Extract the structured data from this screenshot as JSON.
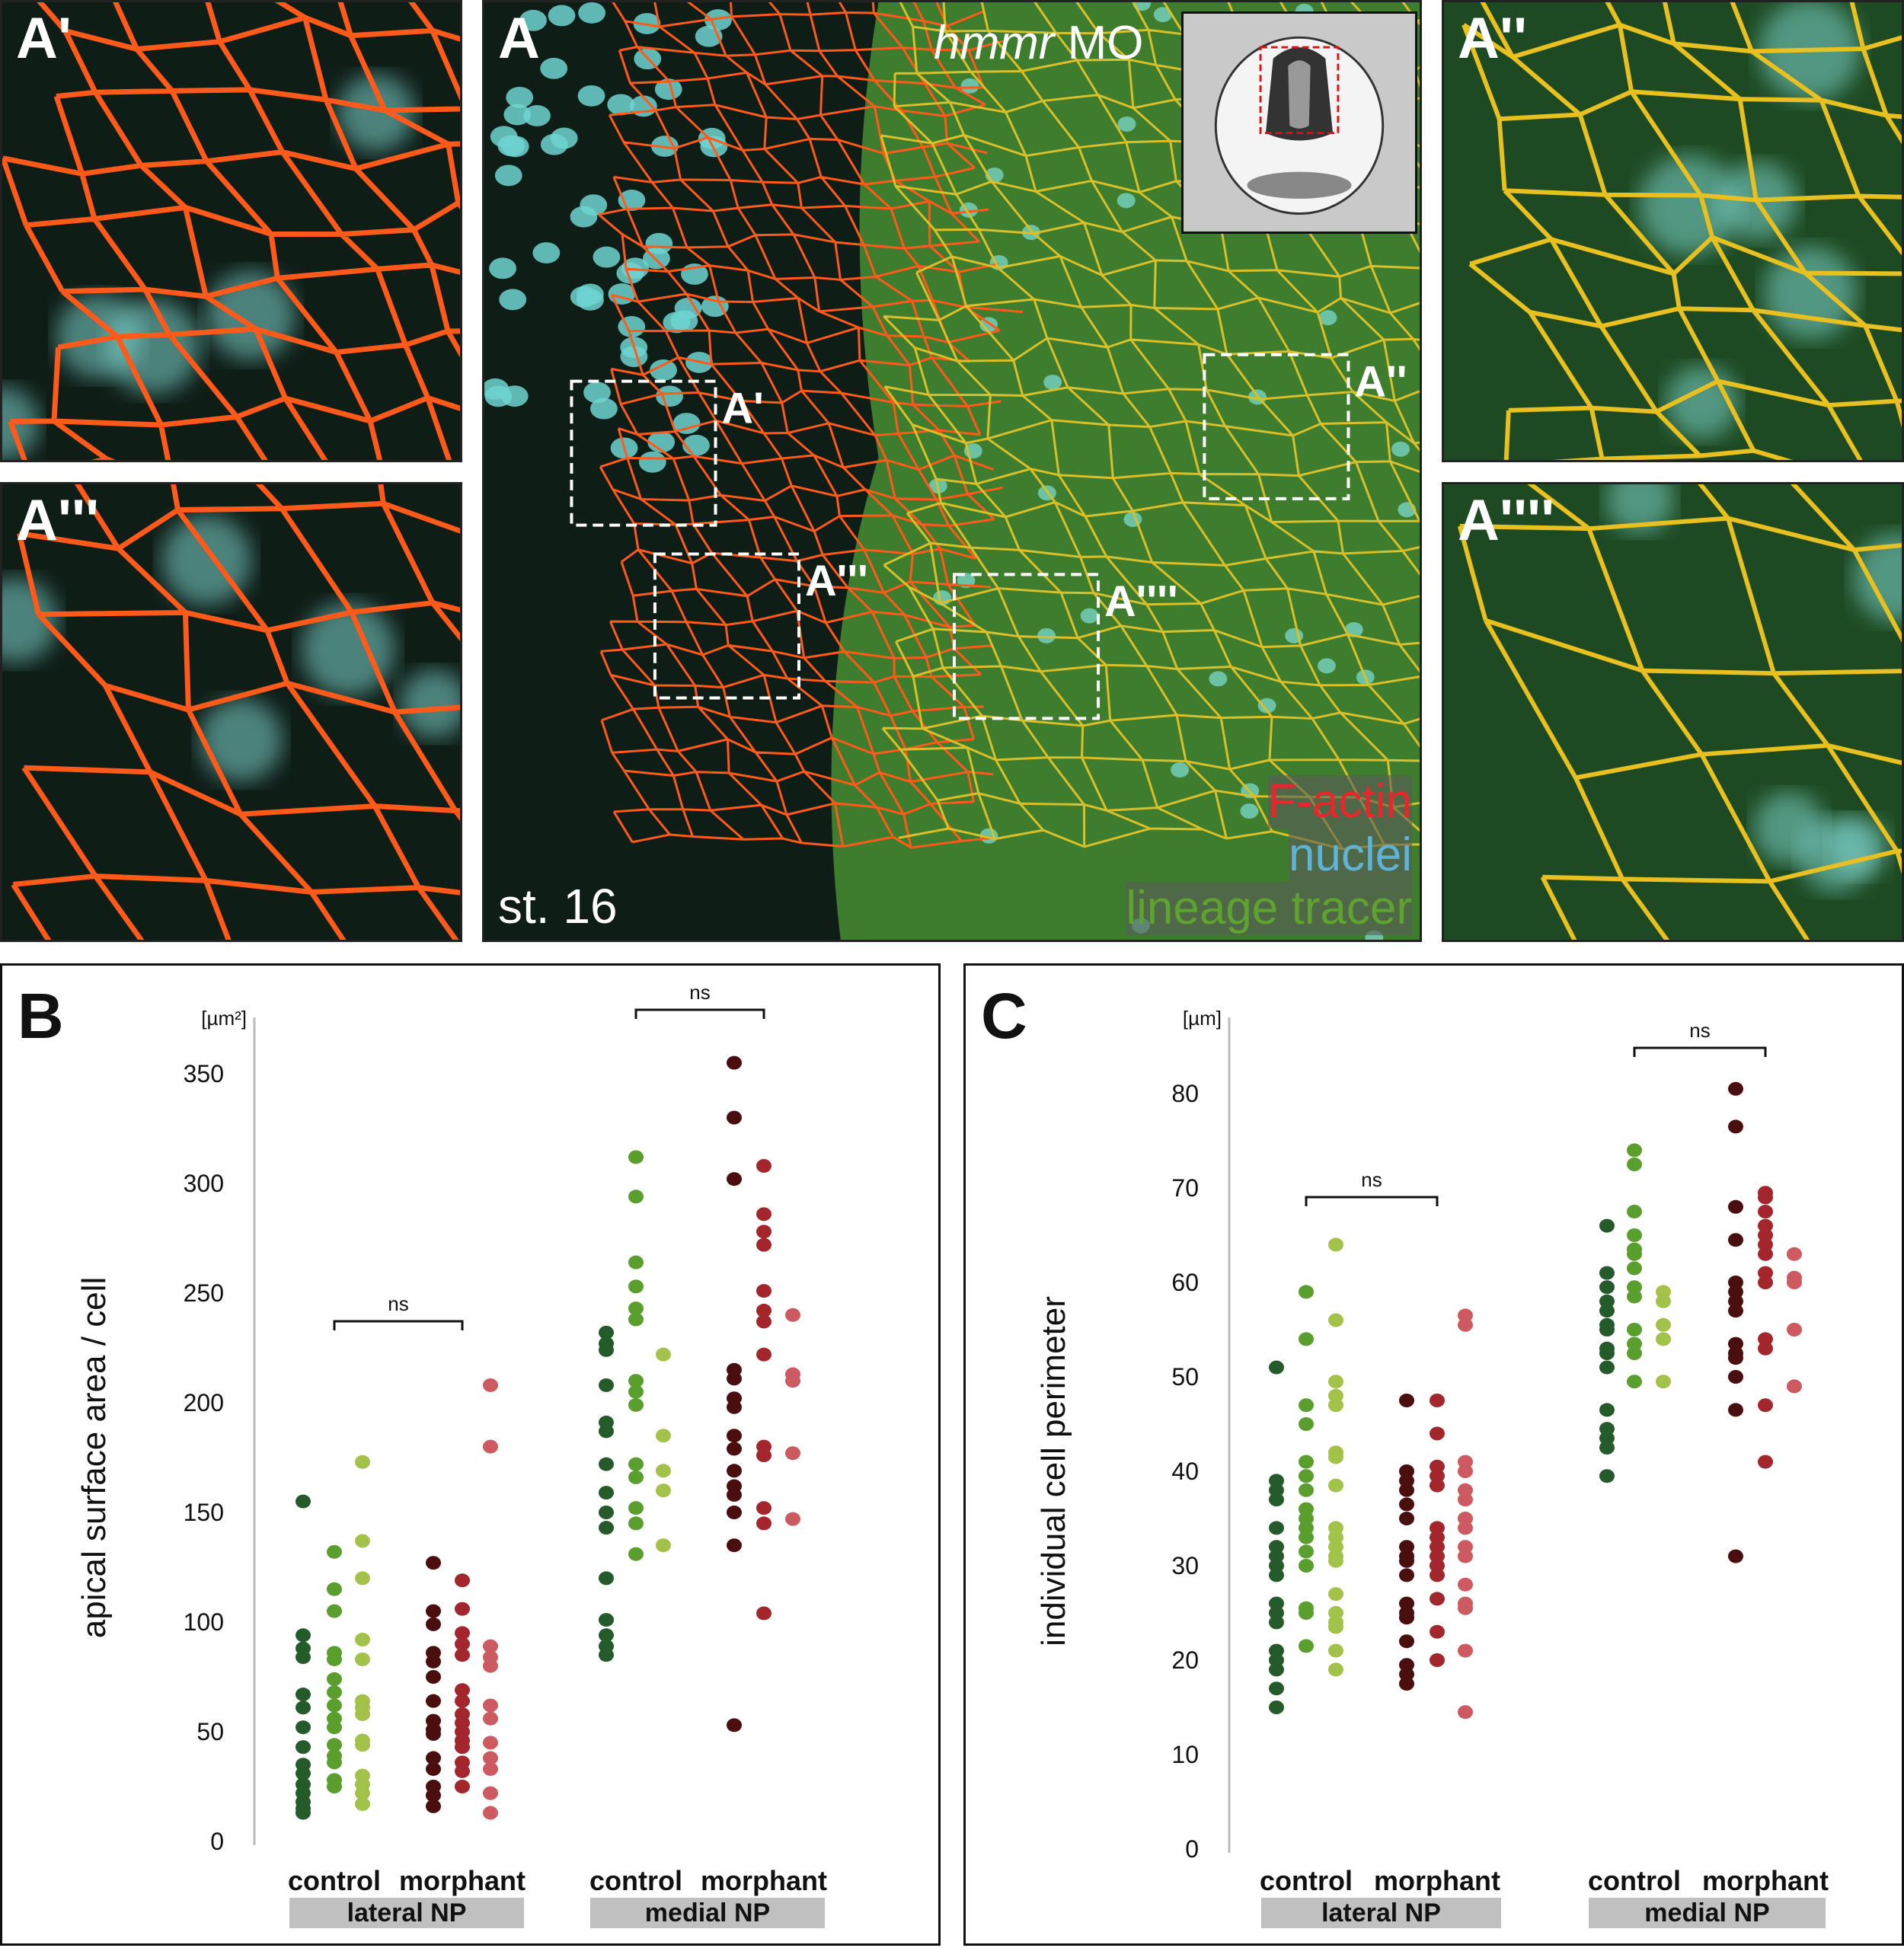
{
  "panels": {
    "a_prime": "A'",
    "a_triple": "A'''",
    "a_main": "A",
    "a_double": "A''",
    "a_quad": "A''''",
    "box_labels": [
      "A'",
      "A''",
      "A'''",
      "A''''"
    ],
    "treatment_italic": "hmmr",
    "treatment_rest": " MO",
    "stage": "st. 16",
    "legend": [
      {
        "text": "F-actin",
        "color": "#e8262c"
      },
      {
        "text": "nuclei",
        "color": "#5fb4d6"
      },
      {
        "text": "lineage tracer",
        "color": "#5ea32e"
      }
    ]
  },
  "colors": {
    "lat_ctrl": [
      "#255a2a",
      "#5a9e2e",
      "#a3c24a"
    ],
    "lat_morph": [
      "#4a0e0e",
      "#a3262c",
      "#cc5a60"
    ],
    "med_ctrl": [
      "#255a2a",
      "#5a9e2e",
      "#a3c24a"
    ],
    "med_morph": [
      "#4a0e0e",
      "#a3262c",
      "#cc5a60"
    ]
  },
  "chart_data": [
    {
      "panel": "B",
      "type": "scatter",
      "ylabel": "apical surface area / cell",
      "unit": "[µm²]",
      "ylim": [
        0,
        350
      ],
      "yticks": [
        "0",
        "50",
        "100",
        "150",
        "200",
        "250",
        "300",
        "350"
      ],
      "groups": [
        {
          "label": "lateral NP",
          "conditions": [
            "control",
            "morphant"
          ]
        },
        {
          "label": "medial NP",
          "conditions": [
            "control",
            "morphant"
          ]
        }
      ],
      "significance": [
        {
          "text": "ns",
          "group": "lateral NP"
        },
        {
          "text": "ns",
          "group": "medial NP"
        }
      ],
      "series": [
        {
          "name": "lateral control 1",
          "values": [
            155,
            94,
            88,
            84,
            67,
            61,
            52,
            43,
            35,
            31,
            26,
            22,
            18,
            15,
            13
          ]
        },
        {
          "name": "lateral control 2",
          "values": [
            132,
            115,
            105,
            86,
            83,
            74,
            68,
            62,
            56,
            52,
            44,
            39,
            36,
            28,
            25
          ]
        },
        {
          "name": "lateral control 3",
          "values": [
            173,
            137,
            120,
            92,
            83,
            64,
            61,
            58,
            46,
            44,
            30,
            26,
            22,
            17
          ]
        },
        {
          "name": "lateral morphant 1",
          "values": [
            127,
            105,
            99,
            86,
            82,
            75,
            64,
            55,
            51,
            49,
            38,
            33,
            25,
            21,
            16
          ]
        },
        {
          "name": "lateral morphant 2",
          "values": [
            119,
            106,
            95,
            90,
            85,
            69,
            64,
            58,
            54,
            50,
            46,
            43,
            36,
            32,
            25
          ]
        },
        {
          "name": "lateral morphant 3",
          "values": [
            208,
            180,
            89,
            84,
            80,
            62,
            56,
            45,
            38,
            33,
            22,
            13
          ]
        },
        {
          "name": "medial control 1",
          "values": [
            232,
            227,
            224,
            208,
            191,
            187,
            172,
            159,
            150,
            143,
            120,
            101,
            94,
            89,
            85
          ]
        },
        {
          "name": "medial control 2",
          "values": [
            312,
            294,
            264,
            253,
            243,
            238,
            210,
            205,
            199,
            172,
            166,
            152,
            145,
            131
          ]
        },
        {
          "name": "medial control 3",
          "values": [
            222,
            185,
            169,
            160,
            135
          ]
        },
        {
          "name": "medial morphant 1",
          "values": [
            355,
            330,
            302,
            215,
            211,
            202,
            198,
            185,
            179,
            169,
            162,
            158,
            150,
            135,
            53
          ]
        },
        {
          "name": "medial morphant 2",
          "values": [
            308,
            286,
            278,
            272,
            251,
            242,
            237,
            222,
            180,
            176,
            152,
            145,
            104
          ]
        },
        {
          "name": "medial morphant 3",
          "values": [
            240,
            213,
            210,
            177,
            147
          ]
        }
      ]
    },
    {
      "panel": "C",
      "type": "scatter",
      "ylabel": "individual cell perimeter",
      "unit": "[µm]",
      "ylim": [
        0,
        80
      ],
      "yticks": [
        "0",
        "10",
        "20",
        "30",
        "40",
        "50",
        "60",
        "70",
        "80"
      ],
      "groups": [
        {
          "label": "lateral NP",
          "conditions": [
            "control",
            "morphant"
          ]
        },
        {
          "label": "medial NP",
          "conditions": [
            "control",
            "morphant"
          ]
        }
      ],
      "significance": [
        {
          "text": "ns",
          "group": "lateral NP"
        },
        {
          "text": "ns",
          "group": "medial NP"
        }
      ],
      "series": [
        {
          "name": "lateral control 1",
          "values": [
            51,
            39,
            38,
            37,
            34,
            32,
            31,
            30,
            29,
            26,
            25,
            24,
            21,
            20,
            19,
            17,
            15
          ]
        },
        {
          "name": "lateral control 2",
          "values": [
            59,
            54,
            47,
            45,
            41,
            39.5,
            38,
            36,
            35,
            34,
            33,
            31.5,
            30,
            25.5,
            25,
            21.5
          ]
        },
        {
          "name": "lateral control 3",
          "values": [
            64,
            56,
            49.5,
            48,
            47,
            42,
            41.5,
            38.5,
            34,
            33,
            32,
            31,
            30.5,
            27,
            25,
            24,
            23.5,
            21,
            19
          ]
        },
        {
          "name": "lateral morphant 1",
          "values": [
            47.5,
            40,
            39,
            38,
            36.5,
            35,
            32,
            31,
            30.5,
            29,
            26,
            25,
            24.5,
            22,
            19.5,
            18.5,
            17.5
          ]
        },
        {
          "name": "lateral morphant 2",
          "values": [
            47.5,
            44,
            40.5,
            39.5,
            38.5,
            34,
            33,
            32,
            31,
            30,
            29,
            26.5,
            23,
            20
          ]
        },
        {
          "name": "lateral morphant 3",
          "values": [
            56.5,
            55.5,
            41,
            40,
            38,
            37,
            35,
            34,
            32,
            31,
            28,
            26,
            25.5,
            21,
            14.5
          ]
        },
        {
          "name": "medial control 1",
          "values": [
            66,
            61,
            59.5,
            58,
            57,
            55.5,
            55,
            53,
            52.5,
            51,
            46.5,
            44.5,
            43.5,
            42.5,
            39.5
          ]
        },
        {
          "name": "medial control 2",
          "values": [
            74,
            72.5,
            67.5,
            65,
            63.5,
            63,
            61.5,
            59.5,
            58.5,
            55,
            53.5,
            52.5,
            49.5
          ]
        },
        {
          "name": "medial control 3",
          "values": [
            59,
            58,
            55.5,
            54,
            49.5
          ]
        },
        {
          "name": "medial morphant 1",
          "values": [
            80.5,
            76.5,
            68,
            64.5,
            60,
            59,
            58,
            57,
            53.5,
            52.5,
            52,
            50,
            46.5,
            31
          ]
        },
        {
          "name": "medial morphant 2",
          "values": [
            69.5,
            69,
            67.5,
            66,
            65,
            64,
            63,
            61,
            60,
            54,
            53,
            47,
            41
          ]
        },
        {
          "name": "medial morphant 3",
          "values": [
            63,
            60.5,
            60,
            55,
            49
          ]
        }
      ]
    }
  ]
}
